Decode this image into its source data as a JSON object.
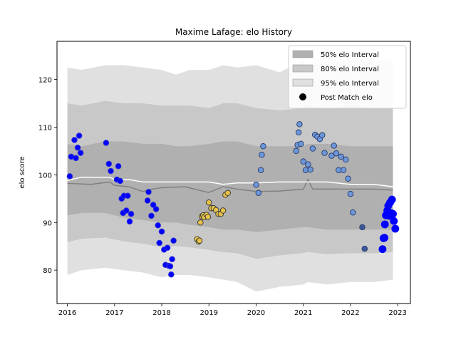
{
  "chart_data": {
    "type": "scatter",
    "title": "Maxime Lafage: elo History",
    "xlabel": "",
    "ylabel": "elo score",
    "xlim": [
      2015.78,
      2023.27
    ],
    "ylim": [
      73.0,
      128.0
    ],
    "xticks": [
      2016,
      2017,
      2018,
      2019,
      2020,
      2021,
      2022,
      2023
    ],
    "yticks": [
      80,
      90,
      100,
      110,
      120
    ],
    "grid": false,
    "legend_position": "top-right",
    "legend": [
      {
        "label": "50% elo Interval",
        "kind": "band",
        "color": "#b0b0b0"
      },
      {
        "label": "80% elo Interval",
        "kind": "band",
        "color": "#c8c8c8"
      },
      {
        "label": "95% elo Interval",
        "kind": "band",
        "color": "#e0e0e0"
      },
      {
        "label": "Post Match elo",
        "kind": "marker",
        "color": "#000000"
      }
    ],
    "bands_x": [
      2016.0,
      2016.3,
      2016.8,
      2017.2,
      2017.6,
      2018.0,
      2018.3,
      2018.6,
      2019.0,
      2019.3,
      2019.6,
      2020.0,
      2020.5,
      2021.0,
      2021.1,
      2021.5,
      2022.0,
      2022.5,
      2022.9
    ],
    "band_95": {
      "upper": [
        122.5,
        122.0,
        123.0,
        123.0,
        122.5,
        122.0,
        121.0,
        122.0,
        122.0,
        123.0,
        122.5,
        123.0,
        121.5,
        124.0,
        123.0,
        123.5,
        124.0,
        124.0,
        124.0
      ],
      "lower": [
        79.0,
        80.0,
        80.5,
        80.0,
        79.5,
        78.5,
        79.0,
        79.0,
        78.5,
        78.0,
        77.5,
        75.5,
        76.5,
        77.0,
        77.5,
        77.0,
        77.5,
        77.5,
        78.0
      ]
    },
    "band_80": {
      "upper": [
        115.0,
        114.5,
        115.5,
        115.0,
        115.0,
        114.5,
        114.5,
        114.5,
        114.0,
        115.0,
        115.0,
        114.0,
        113.5,
        114.0,
        114.5,
        114.0,
        114.5,
        114.0,
        114.0
      ]
    },
    "band_50": {
      "upper": [
        106.5,
        106.0,
        107.0,
        107.0,
        106.5,
        106.5,
        106.0,
        106.0,
        106.5,
        107.0,
        107.0,
        106.0,
        106.0,
        106.0,
        106.5,
        106.5,
        106.0,
        106.0,
        106.0
      ],
      "lower": [
        91.5,
        92.0,
        92.0,
        91.0,
        90.5,
        90.0,
        90.0,
        89.5,
        89.0,
        88.5,
        88.5,
        88.0,
        88.5,
        89.0,
        89.0,
        88.5,
        88.5,
        88.5,
        88.5
      ]
    },
    "median_line": {
      "x": [
        2016.0,
        2016.5,
        2016.9,
        2017.0,
        2017.3,
        2017.6,
        2017.8,
        2018.0,
        2018.5,
        2018.9,
        2019.0,
        2019.3,
        2019.6,
        2020.0,
        2020.5,
        2021.0,
        2021.1,
        2021.2,
        2021.5,
        2022.0,
        2022.5,
        2022.9
      ],
      "y": [
        98.2,
        98.0,
        98.5,
        97.8,
        97.5,
        96.5,
        97.0,
        97.3,
        97.5,
        96.5,
        96.3,
        97.5,
        97.0,
        96.5,
        96.6,
        97.0,
        99.0,
        97.0,
        97.0,
        97.0,
        97.0,
        96.8
      ]
    },
    "mean_line": {
      "x": [
        2016.0,
        2016.3,
        2016.9,
        2017.0,
        2017.3,
        2017.6,
        2018.0,
        2018.5,
        2019.0,
        2019.3,
        2019.6,
        2020.0,
        2020.5,
        2021.0,
        2021.5,
        2022.0,
        2022.5,
        2022.9
      ],
      "y": [
        98.8,
        99.5,
        99.5,
        99.0,
        99.0,
        98.5,
        98.5,
        98.5,
        98.5,
        98.0,
        98.3,
        98.3,
        98.5,
        98.5,
        98.5,
        98.0,
        98.0,
        97.5
      ]
    },
    "series": [
      {
        "color": "#0000ff",
        "edge": "#3030d0",
        "x": [
          2016.05,
          2016.08,
          2016.15,
          2016.18,
          2016.22,
          2016.25,
          2016.28,
          2016.82,
          2016.88,
          2016.92,
          2017.05,
          2017.08,
          2017.12,
          2017.15,
          2017.18,
          2017.2,
          2017.25,
          2017.28,
          2017.32,
          2017.35,
          2017.7,
          2017.72,
          2017.78,
          2017.82,
          2017.88,
          2017.92,
          2017.95,
          2018.0,
          2018.05,
          2018.08,
          2018.12,
          2018.15,
          2018.18,
          2018.2,
          2018.22,
          2018.25
        ],
        "y": [
          99.7,
          103.8,
          107.3,
          103.5,
          105.7,
          108.2,
          104.6,
          106.7,
          102.3,
          100.8,
          99.0,
          101.8,
          98.7,
          95.0,
          92.0,
          95.6,
          92.5,
          95.6,
          90.2,
          91.8,
          94.6,
          96.4,
          91.4,
          93.7,
          92.8,
          89.4,
          85.7,
          88.1,
          84.3,
          81.1,
          84.7,
          80.9,
          80.8,
          79.1,
          82.3,
          86.2
        ]
      },
      {
        "color": "#e6c24a",
        "edge": "#333333",
        "x": [
          2018.75,
          2018.78,
          2018.8,
          2018.82,
          2018.85,
          2018.88,
          2018.9,
          2018.95,
          2018.98,
          2019.0,
          2019.05,
          2019.1,
          2019.15,
          2019.2,
          2019.25,
          2019.3,
          2019.35,
          2019.4
        ],
        "y": [
          86.5,
          86.0,
          86.2,
          90.0,
          91.3,
          91.5,
          91.1,
          91.6,
          91.2,
          94.2,
          93.0,
          93.0,
          92.6,
          91.8,
          91.8,
          92.5,
          95.8,
          96.2
        ]
      },
      {
        "color": "#6b97d9",
        "edge": "#2a3a6a",
        "x": [
          2020.0,
          2020.05,
          2020.1,
          2020.12,
          2020.15,
          2020.85,
          2020.88,
          2020.9,
          2020.92,
          2020.95,
          2021.0,
          2021.05,
          2021.1,
          2021.15,
          2021.2,
          2021.25,
          2021.3,
          2021.35,
          2021.4,
          2021.45,
          2021.6,
          2021.65,
          2021.7,
          2021.75,
          2021.8,
          2021.85,
          2021.9,
          2021.95,
          2022.0,
          2022.05
        ],
        "y": [
          97.9,
          96.2,
          101.0,
          104.2,
          106.0,
          105.0,
          106.3,
          108.9,
          110.6,
          106.5,
          102.8,
          101.0,
          102.2,
          101.1,
          105.5,
          108.4,
          108.0,
          107.5,
          108.3,
          104.6,
          104.0,
          106.1,
          104.5,
          101.0,
          103.8,
          101.0,
          103.2,
          99.2,
          96.0,
          92.1
        ]
      },
      {
        "color": "#3c5a99",
        "edge": "#2a3a6a",
        "x": [
          2022.25,
          2022.3
        ],
        "y": [
          89.0,
          84.5
        ]
      },
      {
        "color": "#0000ff",
        "edge": "#0000ff",
        "x": [
          2022.68,
          2022.7,
          2022.72,
          2022.73,
          2022.75,
          2022.78,
          2022.8,
          2022.82,
          2022.84,
          2022.86,
          2022.88,
          2022.9,
          2022.92,
          2022.95
        ],
        "y": [
          84.4,
          86.7,
          86.8,
          89.6,
          91.5,
          92.5,
          93.5,
          91.4,
          94.2,
          92.0,
          94.8,
          91.8,
          90.3,
          88.7
        ]
      }
    ]
  }
}
